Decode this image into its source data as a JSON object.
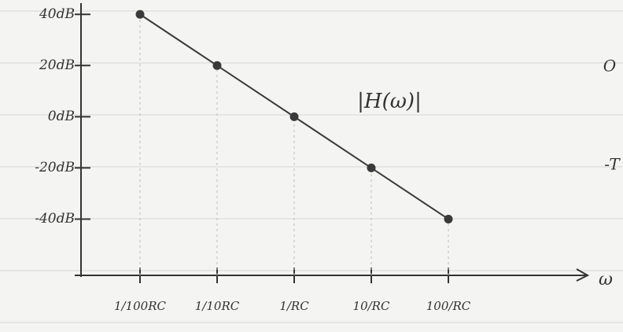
{
  "chart_data": {
    "type": "line",
    "annotation": "|H(ω)|",
    "x_label": "ω",
    "margin_notes": [
      "O",
      "-T"
    ],
    "categories": [
      "1/100RC",
      "1/10RC",
      "1/RC",
      "10/RC",
      "100/RC"
    ],
    "values": [
      40,
      20,
      0,
      -20,
      -40
    ],
    "color": "#3a3a3a",
    "ylim": [
      -62,
      45
    ],
    "yticks": [
      {
        "value": 40,
        "label": "40dB"
      },
      {
        "value": 20,
        "label": "20dB"
      },
      {
        "value": 0,
        "label": "0dB"
      },
      {
        "value": -20,
        "label": "-20dB"
      },
      {
        "value": -40,
        "label": "-40dB"
      }
    ]
  }
}
